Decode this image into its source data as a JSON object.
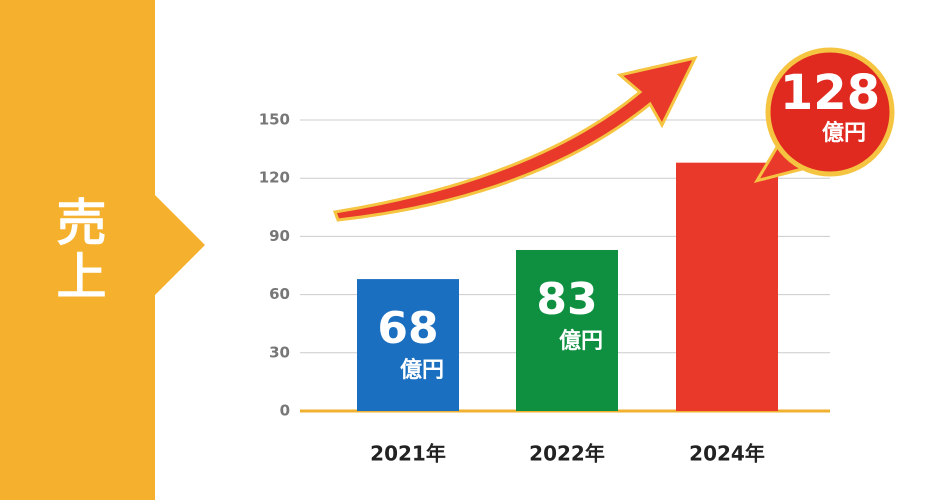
{
  "chart_data": {
    "type": "bar",
    "title": "売上",
    "categories": [
      "2021年",
      "2022年",
      "2024年"
    ],
    "values": [
      68,
      83,
      128
    ],
    "colors": [
      "#1a6fc0",
      "#0e9040",
      "#e8392b"
    ],
    "unit": "億円",
    "ylim": [
      0,
      150
    ],
    "yticks": [
      0,
      30,
      60,
      90,
      120,
      150
    ],
    "grid": true
  }
}
